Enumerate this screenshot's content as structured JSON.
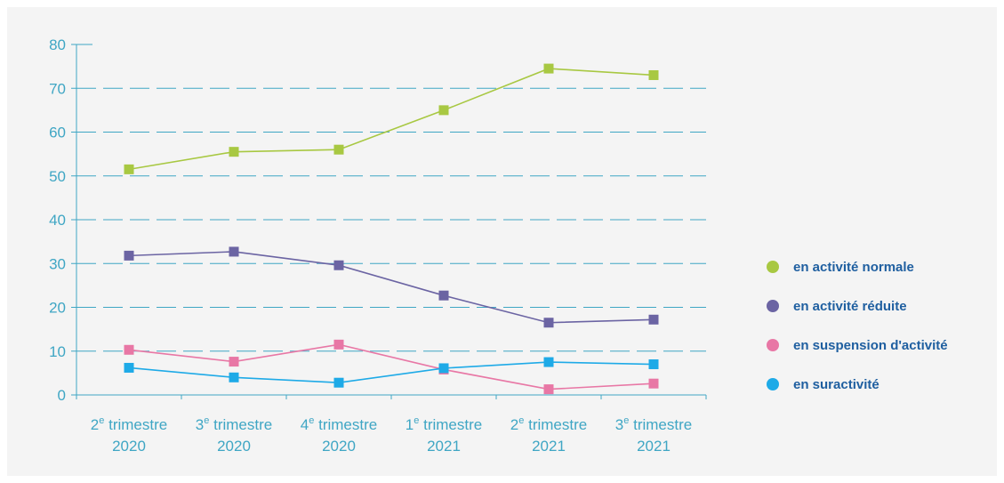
{
  "chart_data": {
    "type": "line",
    "categories": [
      {
        "ordinal": "2",
        "sup": "e",
        "word": "trimestre",
        "year": "2020"
      },
      {
        "ordinal": "3",
        "sup": "e",
        "word": "trimestre",
        "year": "2020"
      },
      {
        "ordinal": "4",
        "sup": "e",
        "word": "trimestre",
        "year": "2020"
      },
      {
        "ordinal": "1",
        "sup": "e",
        "word": "trimestre",
        "year": "2021"
      },
      {
        "ordinal": "2",
        "sup": "e",
        "word": "trimestre",
        "year": "2021"
      },
      {
        "ordinal": "3",
        "sup": "e",
        "word": "trimestre",
        "year": "2021"
      }
    ],
    "series": [
      {
        "name": "en activité normale",
        "color": "#a8c842",
        "values": [
          51.5,
          55.5,
          56,
          65,
          74.5,
          73
        ]
      },
      {
        "name": "en activité réduite",
        "color": "#6b64a3",
        "values": [
          31.8,
          32.7,
          29.6,
          22.7,
          16.5,
          17.2
        ]
      },
      {
        "name": "en suspension d'activité",
        "color": "#e877a5",
        "values": [
          10.3,
          7.6,
          11.5,
          5.8,
          1.3,
          2.6
        ]
      },
      {
        "name": "en suractivité",
        "color": "#1eaae7",
        "values": [
          6.2,
          4,
          2.8,
          6.1,
          7.5,
          7
        ]
      }
    ],
    "yticks": [
      0,
      10,
      20,
      30,
      40,
      50,
      60,
      70,
      80
    ],
    "ylim": [
      0,
      80
    ],
    "grid": true,
    "legend": "right",
    "axis_color": "#3fa6c4"
  }
}
